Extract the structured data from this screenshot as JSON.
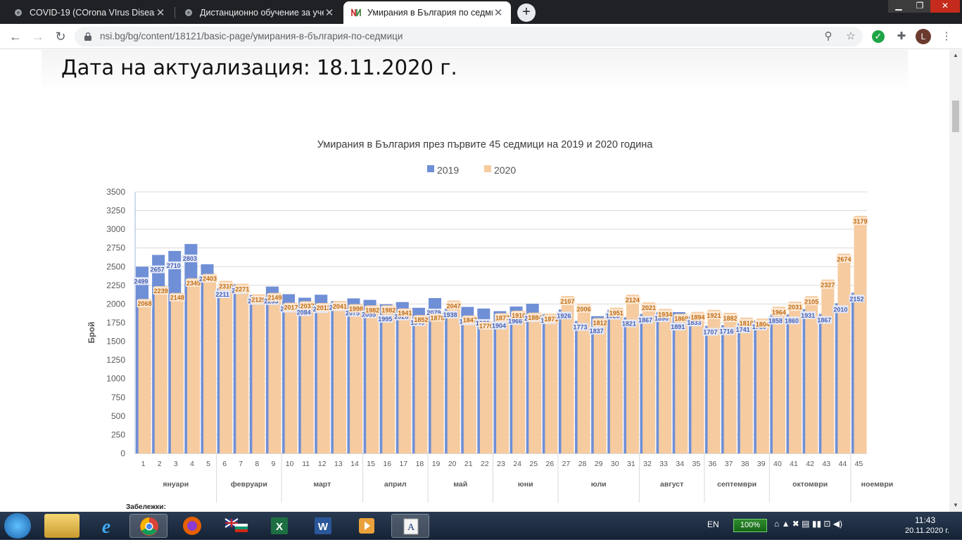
{
  "browser": {
    "tabs": [
      {
        "title": "COVID-19 (COrona VIrus Disease",
        "active": false
      },
      {
        "title": "Дистанционно обучение за уче",
        "active": false
      },
      {
        "title": "Умирания в България по седми",
        "active": true
      }
    ],
    "new_tab_label": "+",
    "url": "nsi.bg/bg/content/18121/basic-page/умирания-в-българия-по-седмици",
    "avatar_letter": "L"
  },
  "page": {
    "date_heading": "Дата на актуализация: 18.11.2020 г.",
    "notes_label": "Забележки:"
  },
  "chart_data": {
    "type": "bar",
    "title": "Умирания в България през първите 45 седмици на 2019 и 2020 година",
    "ylabel": "Брой",
    "xlabel": "",
    "ylim": [
      0,
      3500
    ],
    "yticks": [
      0,
      250,
      500,
      750,
      1000,
      1250,
      1500,
      1750,
      2000,
      2250,
      2500,
      2750,
      3000,
      3250,
      3500
    ],
    "grid": true,
    "legend_position": "top-center",
    "categories": [
      "1",
      "2",
      "3",
      "4",
      "5",
      "6",
      "7",
      "8",
      "9",
      "10",
      "11",
      "12",
      "13",
      "14",
      "15",
      "16",
      "17",
      "18",
      "19",
      "20",
      "21",
      "22",
      "23",
      "24",
      "25",
      "26",
      "27",
      "28",
      "29",
      "30",
      "31",
      "32",
      "33",
      "34",
      "35",
      "36",
      "37",
      "38",
      "39",
      "40",
      "41",
      "42",
      "43",
      "44",
      "45"
    ],
    "months": [
      {
        "name": "януари",
        "weeks": [
          1,
          5
        ]
      },
      {
        "name": "февруари",
        "weeks": [
          6,
          9
        ]
      },
      {
        "name": "март",
        "weeks": [
          10,
          14
        ]
      },
      {
        "name": "април",
        "weeks": [
          15,
          18
        ]
      },
      {
        "name": "май",
        "weeks": [
          19,
          22
        ]
      },
      {
        "name": "юни",
        "weeks": [
          23,
          26
        ]
      },
      {
        "name": "юли",
        "weeks": [
          27,
          31
        ]
      },
      {
        "name": "август",
        "weeks": [
          32,
          35
        ]
      },
      {
        "name": "септември",
        "weeks": [
          36,
          39
        ]
      },
      {
        "name": "октомври",
        "weeks": [
          40,
          44
        ]
      },
      {
        "name": "ноември",
        "weeks": [
          45,
          45
        ]
      }
    ],
    "series": [
      {
        "name": "2019",
        "color": "#6f8fd6",
        "label_color": "#4a5fb0",
        "values": [
          2499,
          2657,
          2710,
          2803,
          2532,
          2211,
          2265,
          2122,
          2233,
          2131,
          2084,
          2124,
          2038,
          2075,
          2055,
          1995,
          2026,
          1949,
          2079,
          1938,
          1961,
          1939,
          1904,
          1966,
          2003,
          1865,
          1926,
          1773,
          1837,
          1923,
          1821,
          1867,
          1890,
          1891,
          1833,
          1707,
          1716,
          1741,
          1780,
          1858,
          1860,
          1931,
          1867,
          2010,
          2152
        ]
      },
      {
        "name": "2020",
        "color": "#f6cba0",
        "label_color": "#c06a10",
        "values": [
          2068,
          2239,
          2148,
          2345,
          2403,
          2310,
          2271,
          2129,
          2149,
          2017,
          2037,
          2013,
          2041,
          1998,
          1982,
          1982,
          1941,
          1852,
          1878,
          2047,
          1847,
          1770,
          1877,
          1910,
          1884,
          1871,
          2107,
          2006,
          1812,
          1951,
          2124,
          2021,
          1934,
          1869,
          1894,
          1921,
          1882,
          1818,
          1804,
          1964,
          2031,
          2105,
          2327,
          2674,
          3179
        ]
      }
    ]
  }
}
